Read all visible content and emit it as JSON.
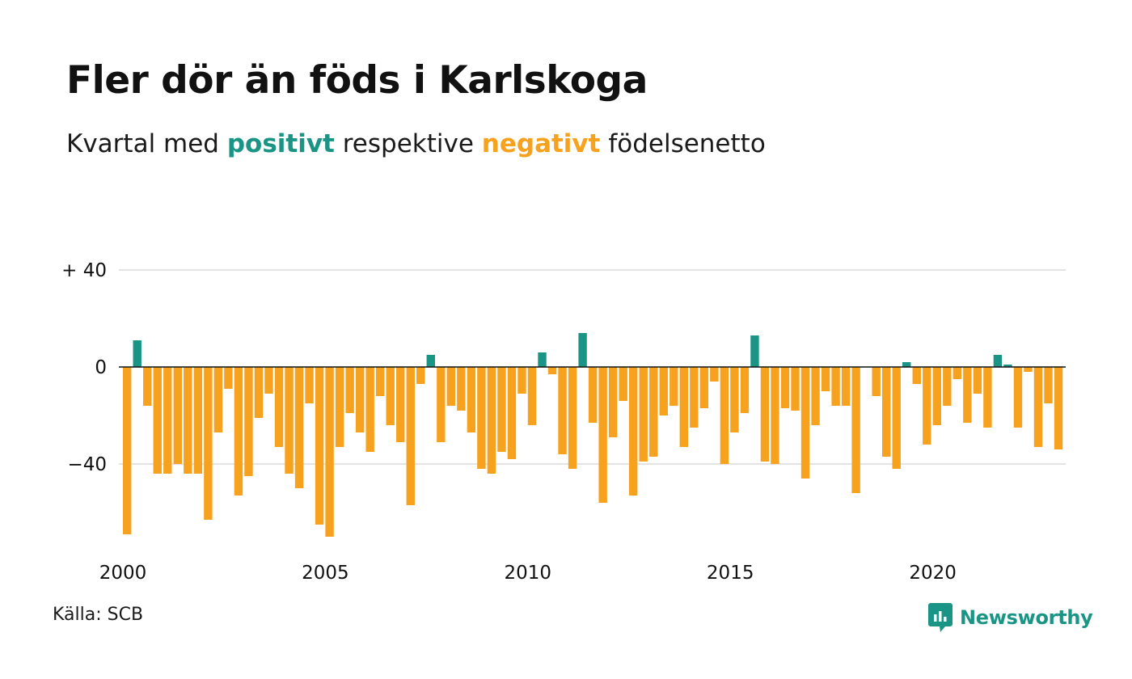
{
  "title": "Fler dör än föds i Karlskoga",
  "subtitle": {
    "prefix": "Kvartal med ",
    "positive_word": "positivt",
    "middle": " respektive ",
    "negative_word": "negativt",
    "suffix": " födelsenetto"
  },
  "source": "Källa: SCB",
  "brand": {
    "name": "Newsworthy",
    "icon": "newsworthy-logo-icon",
    "color": "#1a9585"
  },
  "colors": {
    "positive": "#1a9585",
    "negative": "#f7a21f",
    "grid": "#e3e3e3",
    "zero_line": "#111111"
  },
  "chart_data": {
    "type": "bar",
    "x_label_positions": [
      2000,
      2005,
      2010,
      2015,
      2020
    ],
    "x_tick_labels": [
      "2000",
      "2005",
      "2010",
      "2015",
      "2020"
    ],
    "y_ticks": [
      40,
      0,
      -40
    ],
    "y_tick_labels": [
      "+ 40",
      "0",
      "−40"
    ],
    "ylim": [
      -73,
      40
    ],
    "grid": true,
    "start_year": 2000,
    "start_quarter": 1,
    "values": [
      -69,
      11,
      -16,
      -44,
      -44,
      -40,
      -44,
      -44,
      -63,
      -27,
      -9,
      -53,
      -45,
      -21,
      -11,
      -33,
      -44,
      -50,
      -15,
      -65,
      -70,
      -33,
      -19,
      -27,
      -35,
      -12,
      -24,
      -31,
      -57,
      -7,
      5,
      -31,
      -16,
      -18,
      -27,
      -42,
      -44,
      -35,
      -38,
      -11,
      -24,
      6,
      -3,
      -36,
      -42,
      14,
      -23,
      -56,
      -29,
      -14,
      -53,
      -39,
      -37,
      -20,
      -16,
      -33,
      -25,
      -17,
      -6,
      -40,
      -27,
      -19,
      13,
      -39,
      -40,
      -17,
      -18,
      -46,
      -24,
      -10,
      -16,
      -16,
      -52,
      0,
      -12,
      -37,
      -42,
      2,
      -7,
      -32,
      -24,
      -16,
      -5,
      -23,
      -11,
      -25,
      5,
      1,
      -25,
      -2,
      -33,
      -15,
      -34
    ]
  }
}
